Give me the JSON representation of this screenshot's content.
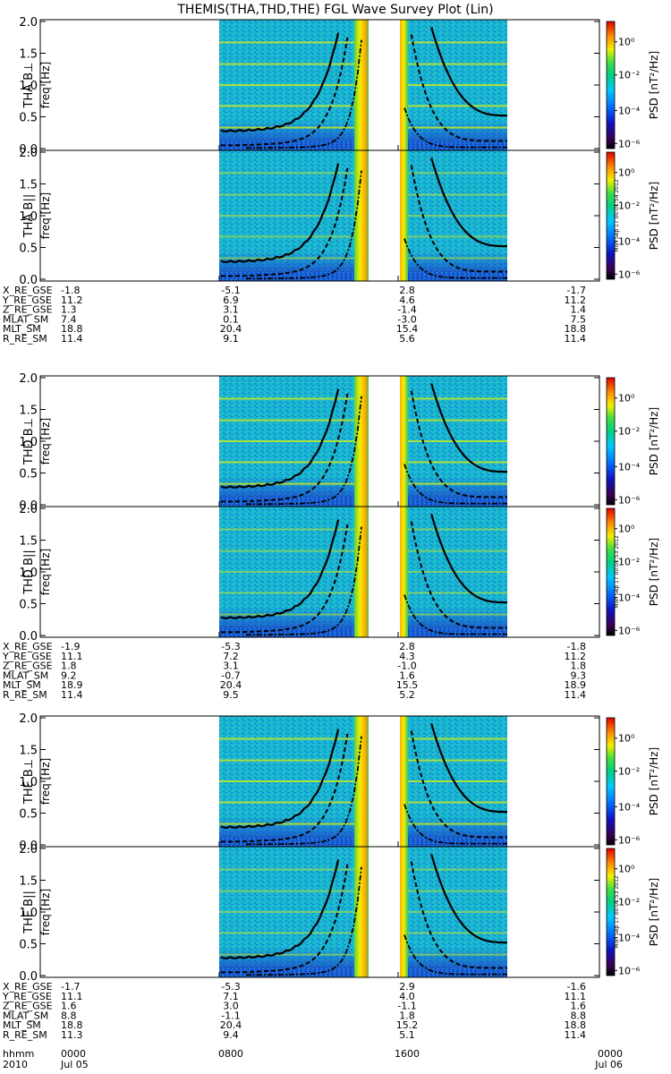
{
  "title": "THEMIS(THA,THD,THE) FGL Wave Survey Plot (Lin)",
  "footer": {
    "rows": [
      {
        "label": "hhmm",
        "values": [
          "0000",
          "0800",
          "1600",
          "0000"
        ]
      },
      {
        "label": "2010",
        "values": [
          "Jul 05",
          "",
          "",
          "Jul 06"
        ]
      }
    ]
  },
  "chart_data": [
    {
      "type": "heatmap",
      "probe": "THA",
      "panels": [
        {
          "ylabel": "THA B⊥",
          "yunit": "freq [Hz]"
        },
        {
          "ylabel": "THA B||",
          "yunit": "freq [Hz]"
        }
      ],
      "yticks": [
        "0.0",
        "0.5",
        "1.0",
        "1.5",
        "2.0"
      ],
      "ylim": [
        0,
        2
      ],
      "colorbar": {
        "label": "PSD [nT²/Hz]",
        "ticks": [
          "10⁰",
          "10⁻²",
          "10⁻⁴",
          "10⁻⁶"
        ],
        "scale": "log"
      },
      "stamp": "Mon Sep 17 00:01:54 2012",
      "ephemeris": [
        {
          "label": "X_RE_GSE",
          "values": [
            "-1.8",
            "-5.1",
            "2.8",
            "-1.7"
          ]
        },
        {
          "label": "Y_RE_GSE",
          "values": [
            "11.2",
            "6.9",
            "4.6",
            "11.2"
          ]
        },
        {
          "label": "Z_RE_GSE",
          "values": [
            "1.3",
            "3.1",
            "-1.4",
            "1.4"
          ]
        },
        {
          "label": "MLAT_SM",
          "values": [
            "7.4",
            "0.1",
            "-3.0",
            "7.5"
          ]
        },
        {
          "label": "MLT_SM",
          "values": [
            "18.8",
            "20.4",
            "15.4",
            "18.8"
          ]
        },
        {
          "label": "R_RE_SM",
          "values": [
            "11.4",
            "9.1",
            "5.6",
            "11.4"
          ]
        }
      ]
    },
    {
      "type": "heatmap",
      "probe": "THD",
      "panels": [
        {
          "ylabel": "THD B⊥",
          "yunit": "freq [Hz]"
        },
        {
          "ylabel": "THD B||",
          "yunit": "freq [Hz]"
        }
      ],
      "yticks": [
        "0.0",
        "0.5",
        "1.0",
        "1.5",
        "2.0"
      ],
      "ylim": [
        0,
        2
      ],
      "colorbar": {
        "label": "PSD [nT²/Hz]",
        "ticks": [
          "10⁰",
          "10⁻²",
          "10⁻⁴",
          "10⁻⁶"
        ],
        "scale": "log"
      },
      "stamp": "Mon Sep 17 00:01:53 2012",
      "ephemeris": [
        {
          "label": "X_RE_GSE",
          "values": [
            "-1.9",
            "-5.3",
            "2.8",
            "-1.8"
          ]
        },
        {
          "label": "Y_RE_GSE",
          "values": [
            "11.1",
            "7.2",
            "4.3",
            "11.2"
          ]
        },
        {
          "label": "Z_RE_GSE",
          "values": [
            "1.8",
            "3.1",
            "-1.0",
            "1.8"
          ]
        },
        {
          "label": "MLAT_SM",
          "values": [
            "9.2",
            "-0.7",
            "1.6",
            "9.3"
          ]
        },
        {
          "label": "MLT_SM",
          "values": [
            "18.9",
            "20.4",
            "15.5",
            "18.9"
          ]
        },
        {
          "label": "R_RE_SM",
          "values": [
            "11.4",
            "9.5",
            "5.2",
            "11.4"
          ]
        }
      ]
    },
    {
      "type": "heatmap",
      "probe": "THE",
      "panels": [
        {
          "ylabel": "THE B⊥",
          "yunit": "freq [Hz]"
        },
        {
          "ylabel": "THE B||",
          "yunit": "freq [Hz]"
        }
      ],
      "yticks": [
        "0.0",
        "0.5",
        "1.0",
        "1.5",
        "2.0"
      ],
      "ylim": [
        0,
        2
      ],
      "colorbar": {
        "label": "PSD [nT²/Hz]",
        "ticks": [
          "10⁰",
          "10⁻²",
          "10⁻⁴",
          "10⁻⁶"
        ],
        "scale": "log"
      },
      "stamp": "Mon Sep 17 00:01:53 2012",
      "ephemeris": [
        {
          "label": "X_RE_GSE",
          "values": [
            "-1.7",
            "-5.3",
            "2.9",
            "-1.6"
          ]
        },
        {
          "label": "Y_RE_GSE",
          "values": [
            "11.1",
            "7.1",
            "4.0",
            "11.1"
          ]
        },
        {
          "label": "Z_RE_GSE",
          "values": [
            "1.6",
            "3.0",
            "-1.1",
            "1.6"
          ]
        },
        {
          "label": "MLAT_SM",
          "values": [
            "8.8",
            "-1.1",
            "1.8",
            "8.8"
          ]
        },
        {
          "label": "MLT_SM",
          "values": [
            "18.8",
            "20.4",
            "15.2",
            "18.8"
          ]
        },
        {
          "label": "R_RE_SM",
          "values": [
            "11.3",
            "9.4",
            "5.1",
            "11.4"
          ]
        }
      ]
    }
  ]
}
